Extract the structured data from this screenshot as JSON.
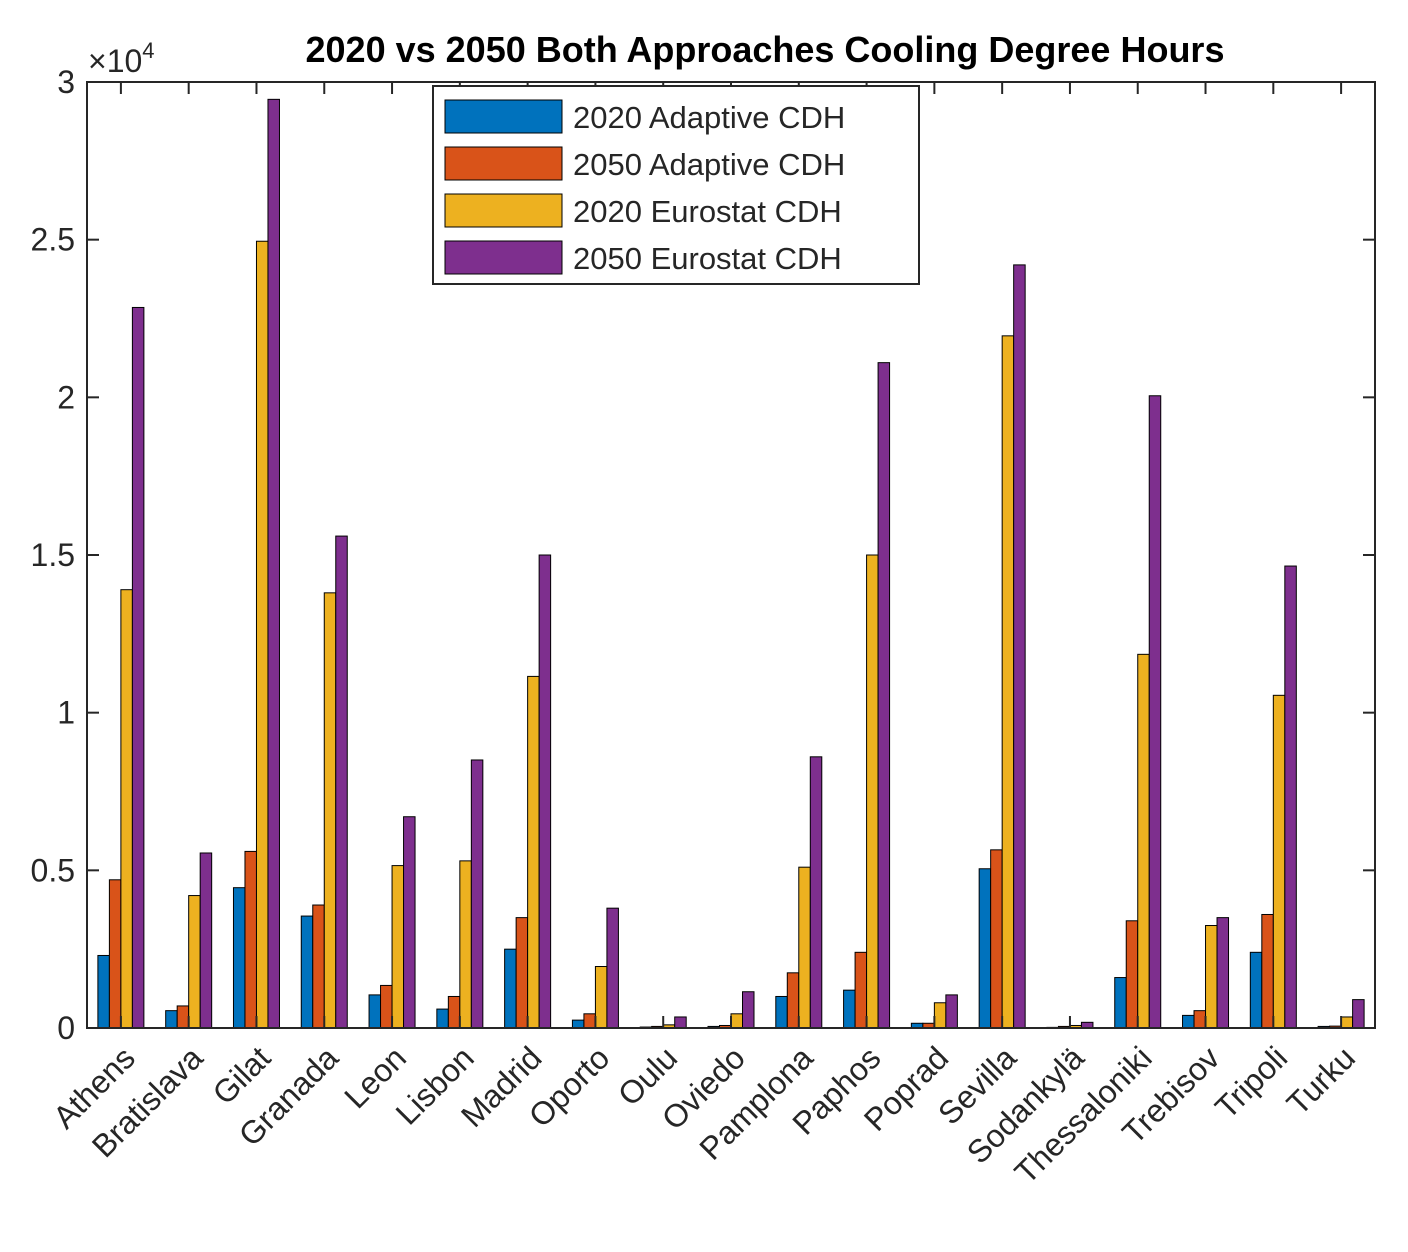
{
  "chart_data": {
    "type": "bar",
    "title": "2020 vs 2050 Both Approaches Cooling Degree Hours",
    "xlabel": "",
    "ylabel": "",
    "y_exponent_label": {
      "base": "×10",
      "power": "4"
    },
    "ylim": [
      0,
      30000
    ],
    "yticks": [
      0,
      5000,
      10000,
      15000,
      20000,
      25000,
      30000
    ],
    "ytick_labels": [
      "0",
      "0.5",
      "1",
      "1.5",
      "2",
      "2.5",
      "3"
    ],
    "grid": false,
    "legend_position": "top-center",
    "categories": [
      "Athens",
      "Bratislava",
      "Gilat",
      "Granada",
      "Leon",
      "Lisbon",
      "Madrid",
      "Oporto",
      "Oulu",
      "Oviedo",
      "Pamplona",
      "Paphos",
      "Poprad",
      "Sevilla",
      "Sodankylä",
      "Thessaloniki",
      "Trebisov",
      "Tripoli",
      "Turku"
    ],
    "series": [
      {
        "name": "2020 Adaptive CDH",
        "color": "#0072BD",
        "values": [
          2300,
          550,
          4450,
          3550,
          1050,
          600,
          2500,
          250,
          30,
          50,
          1000,
          1200,
          150,
          5050,
          20,
          1600,
          400,
          2400,
          50
        ]
      },
      {
        "name": "2050 Adaptive CDH",
        "color": "#D95319",
        "values": [
          4700,
          700,
          5600,
          3900,
          1350,
          1000,
          3500,
          450,
          50,
          80,
          1750,
          2400,
          150,
          5650,
          50,
          3400,
          550,
          3600,
          60
        ]
      },
      {
        "name": "2020 Eurostat CDH",
        "color": "#EDB120",
        "values": [
          13900,
          4200,
          24950,
          13800,
          5150,
          5300,
          11150,
          1950,
          100,
          450,
          5100,
          15000,
          800,
          21950,
          80,
          11850,
          3250,
          10550,
          350
        ]
      },
      {
        "name": "2050 Eurostat CDH",
        "color": "#7E2F8E",
        "values": [
          22850,
          5550,
          29450,
          15600,
          6700,
          8500,
          15000,
          3800,
          350,
          1150,
          8600,
          21100,
          1050,
          24200,
          180,
          20050,
          3500,
          14650,
          900
        ]
      }
    ]
  }
}
